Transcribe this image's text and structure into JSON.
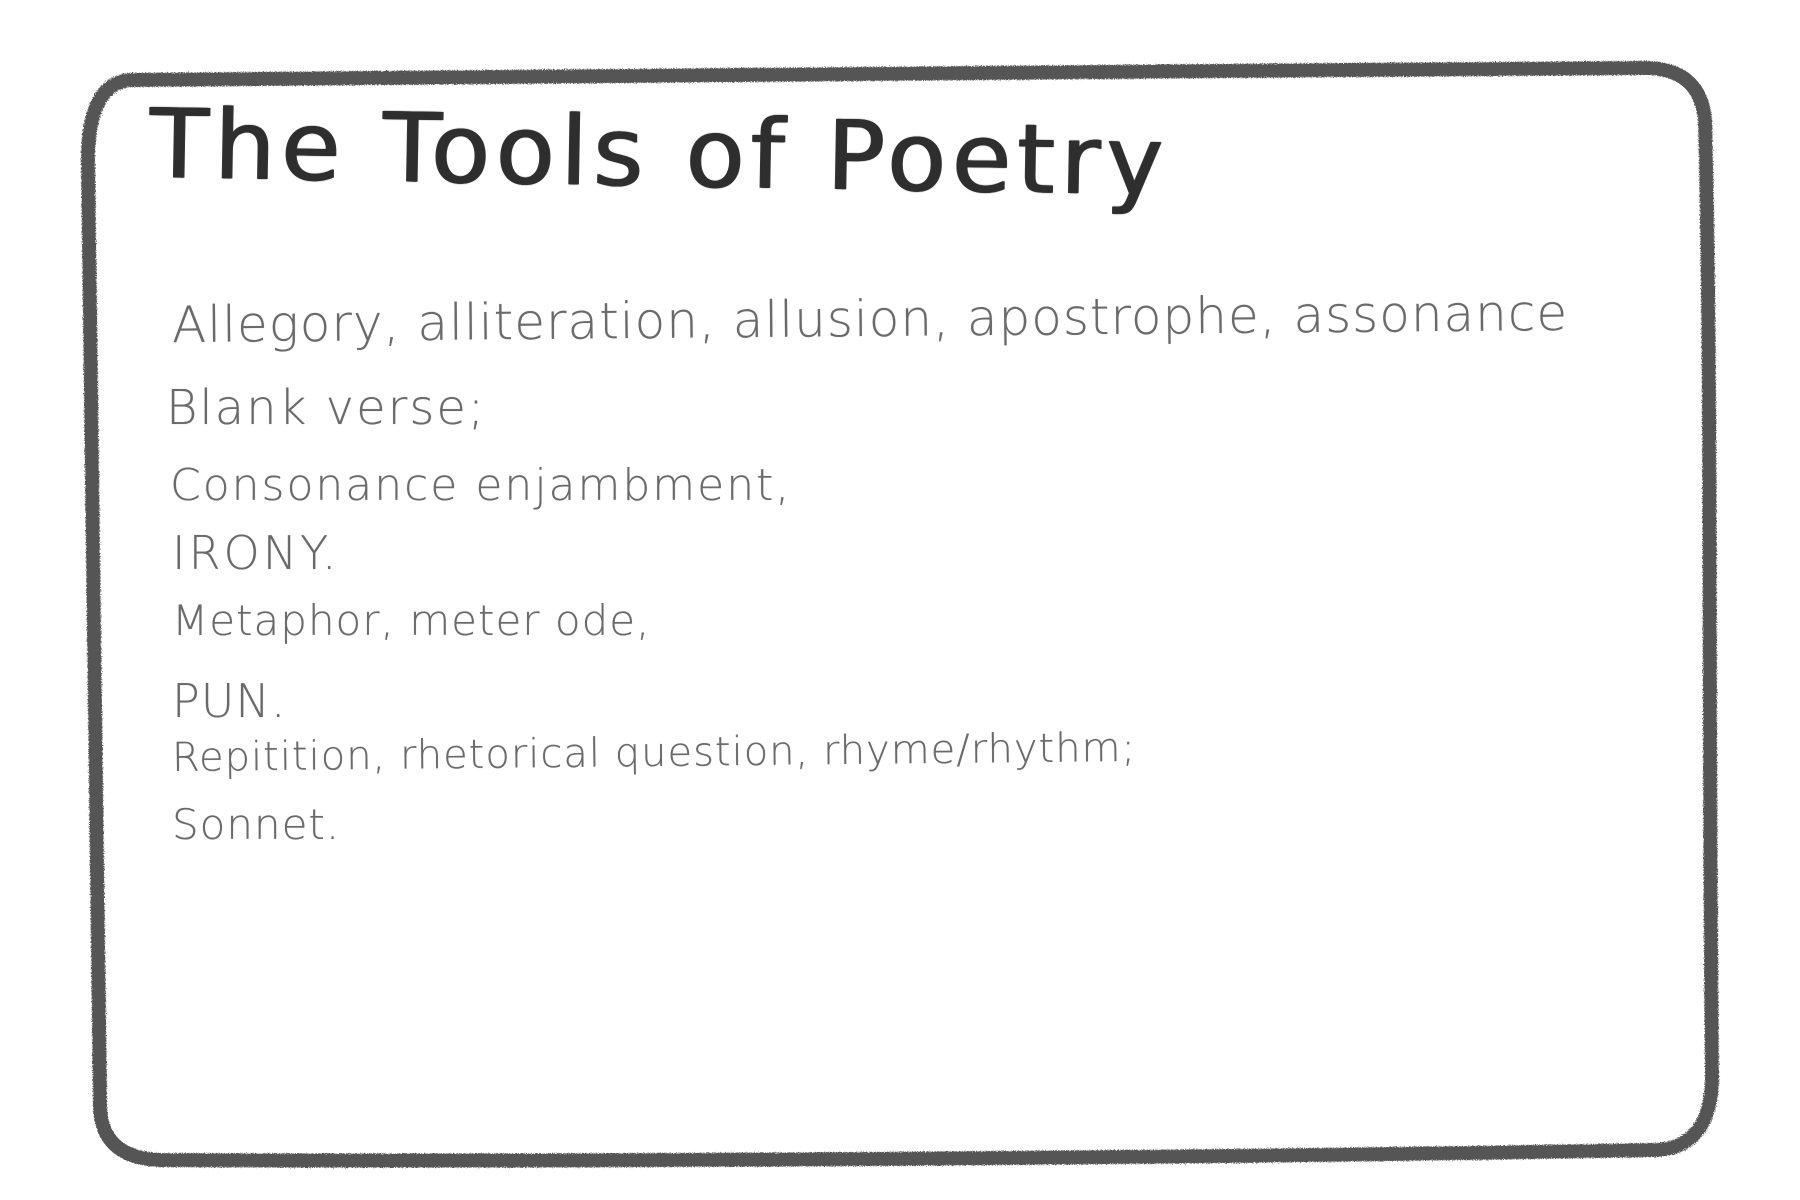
{
  "card": {
    "title": "The Tools of Poetry",
    "frame_color": "#555555",
    "terms": [
      "Allegory, alliteration, allusion, apostrophe, assonance",
      "Blank verse;",
      "Consonance enjambment,",
      "IRONY.",
      "Metaphor, meter ode,",
      "PUN.",
      "Repitition, rhetorical question, rhyme/rhythm;",
      "Sonnet."
    ]
  }
}
